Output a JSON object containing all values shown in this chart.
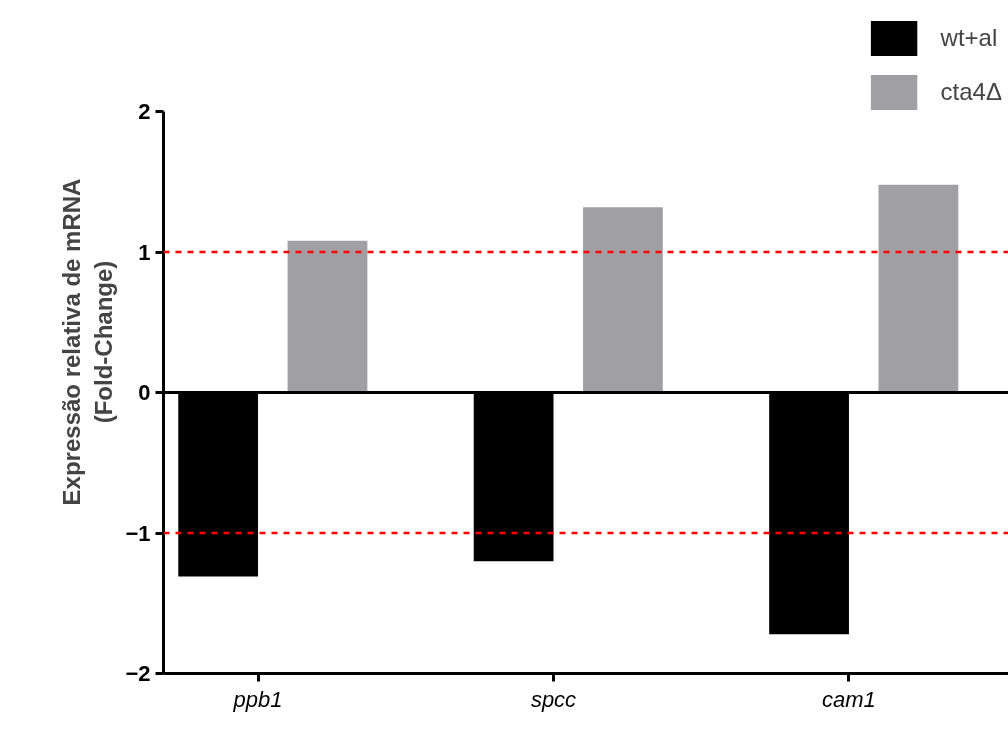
{
  "chart_data": {
    "type": "bar",
    "ylabel": "Expressão relativa de mRNA\n(Fold-Change)",
    "categories": [
      "ppb1",
      "spcc",
      "cam1"
    ],
    "series": [
      {
        "name": "wt+al",
        "color": "#000000",
        "values": [
          -1.31,
          -1.2,
          -1.72
        ]
      },
      {
        "name": "cta4Δ",
        "color": "#a09fa4",
        "values": [
          1.08,
          1.32,
          1.48
        ]
      }
    ],
    "ylim": [
      -2,
      2
    ],
    "yticks": [
      -2,
      -1,
      0,
      1,
      2
    ],
    "ref_lines": [
      {
        "axis": "y",
        "value": 1,
        "color": "#ff0000",
        "line_style": "dashed"
      },
      {
        "axis": "y",
        "value": -1,
        "color": "#ff0000",
        "line_style": "dashed"
      },
      {
        "axis": "y",
        "value": 0,
        "color": "#000000",
        "line_style": "solid"
      }
    ],
    "grid": false,
    "legend": "top right"
  }
}
